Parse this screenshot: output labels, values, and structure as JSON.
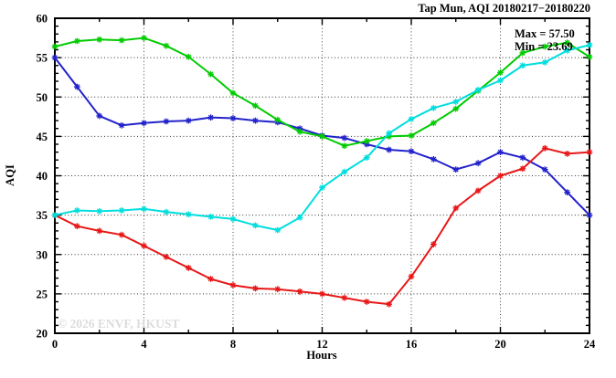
{
  "title": "Tap Mun, AQI 20180217−20180220",
  "watermark": "© 2026 ENVF, HKUST",
  "annotations": {
    "max_label": "Max = 57.50",
    "min_label": "Min = 23.69"
  },
  "chart_data": {
    "type": "line",
    "title": "Tap Mun, AQI 20180217−20180220",
    "xlabel": "Hours",
    "ylabel": "AQI",
    "xlim": [
      0,
      24
    ],
    "ylim": [
      20,
      60
    ],
    "x_major_ticks": [
      0,
      4,
      8,
      12,
      16,
      20,
      24
    ],
    "x_minor_step": 2,
    "y_major_ticks": [
      20,
      25,
      30,
      35,
      40,
      45,
      50,
      55,
      60
    ],
    "y_minor_step": 1,
    "grid": "dotted-at-major-ticks",
    "legend_position": "none",
    "max": 57.5,
    "min": 23.69,
    "x": [
      0,
      1,
      2,
      3,
      4,
      5,
      6,
      7,
      8,
      9,
      10,
      11,
      12,
      13,
      14,
      15,
      16,
      17,
      18,
      19,
      20,
      21,
      22,
      23,
      24
    ],
    "series": [
      {
        "name": "blue",
        "color": "#2222cc",
        "marker": "asterisk",
        "values": [
          55.0,
          51.3,
          47.6,
          46.4,
          46.7,
          46.9,
          47.0,
          47.4,
          47.3,
          47.0,
          46.8,
          46.0,
          45.1,
          44.8,
          44.0,
          43.3,
          43.1,
          42.1,
          40.8,
          41.6,
          43.0,
          42.3,
          40.8,
          37.9,
          35.0
        ]
      },
      {
        "name": "green",
        "color": "#00cc00",
        "marker": "asterisk",
        "values": [
          56.4,
          57.1,
          57.3,
          57.2,
          57.5,
          56.5,
          55.1,
          52.9,
          50.5,
          48.9,
          47.1,
          45.6,
          45.0,
          43.8,
          44.4,
          45.0,
          45.1,
          46.7,
          48.5,
          50.8,
          53.1,
          55.6,
          56.4,
          56.9,
          55.1
        ]
      },
      {
        "name": "red",
        "color": "#e81717",
        "marker": "asterisk",
        "values": [
          35.0,
          33.6,
          33.0,
          32.5,
          31.1,
          29.7,
          28.3,
          26.9,
          26.1,
          25.7,
          25.6,
          25.3,
          25.0,
          24.5,
          24.0,
          23.69,
          27.2,
          31.3,
          35.9,
          38.1,
          40.0,
          40.9,
          43.5,
          42.8,
          43.0
        ]
      },
      {
        "name": "cyan",
        "color": "#00dede",
        "marker": "asterisk",
        "values": [
          35.0,
          35.6,
          35.5,
          35.6,
          35.8,
          35.4,
          35.1,
          34.8,
          34.5,
          33.7,
          33.1,
          34.7,
          38.5,
          40.5,
          42.3,
          45.4,
          47.2,
          48.6,
          49.4,
          50.9,
          52.1,
          54.0,
          54.4,
          55.9,
          56.6
        ]
      }
    ]
  }
}
